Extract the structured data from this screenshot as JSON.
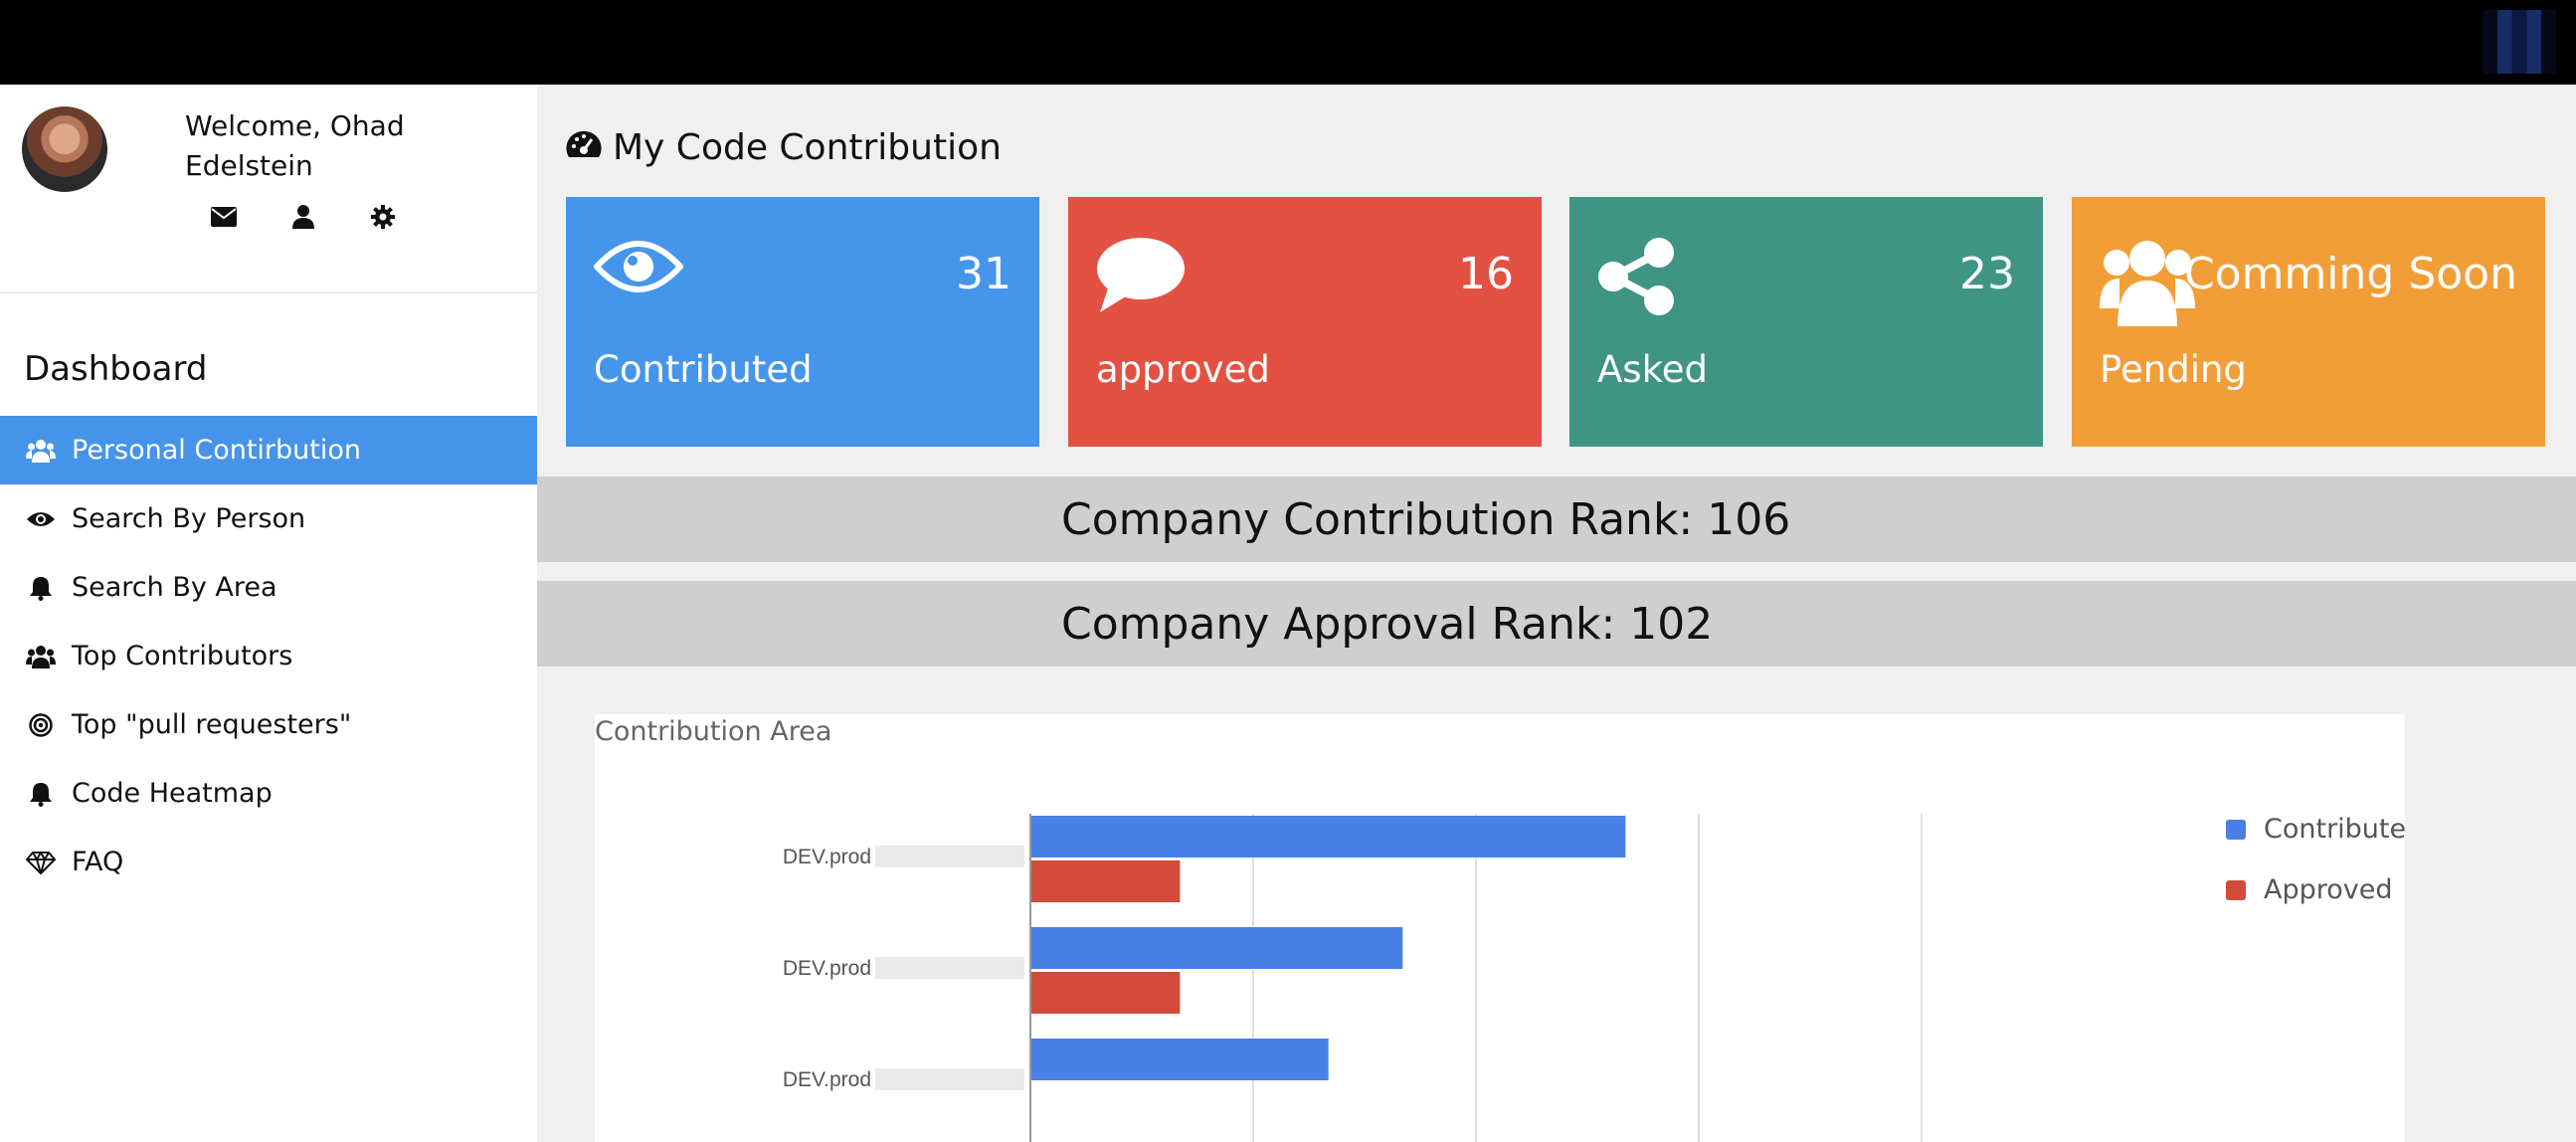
{
  "user": {
    "welcome": "Welcome, Ohad Edelstein"
  },
  "sidebar": {
    "dashboard_title": "Dashboard",
    "items": [
      {
        "label": "Personal Contirbution",
        "icon": "users-icon",
        "active": true
      },
      {
        "label": "Search By Person",
        "icon": "eye-icon"
      },
      {
        "label": "Search By Area",
        "icon": "bell-icon"
      },
      {
        "label": "Top Contributors",
        "icon": "users-icon"
      },
      {
        "label": "Top \"pull requesters\"",
        "icon": "bullseye-icon"
      },
      {
        "label": "Code Heatmap",
        "icon": "bell-icon"
      },
      {
        "label": "FAQ",
        "icon": "diamond-icon"
      }
    ]
  },
  "main": {
    "title": "My Code Contribution",
    "cards": [
      {
        "value": "31",
        "label": "Contributed",
        "icon": "eye-icon",
        "color": "#4596eb"
      },
      {
        "value": "16",
        "label": "approved",
        "icon": "comment-icon",
        "color": "#e25142"
      },
      {
        "value": "23",
        "label": "Asked",
        "icon": "share-icon",
        "color": "#3f9484"
      },
      {
        "value": "Comming Soon",
        "label": "Pending",
        "icon": "users-icon",
        "color": "#f29e38"
      }
    ],
    "ranks": {
      "contribution": "Company Contribution Rank: 106",
      "approval": "Company Approval Rank: 102"
    }
  },
  "chart_data": {
    "type": "bar",
    "orientation": "horizontal",
    "title": "Contribution Area",
    "categories": [
      "DEV.prod",
      "DEV.prod",
      "DEV.prod"
    ],
    "series": [
      {
        "name": "Contributed",
        "color": "#4a7fe4",
        "values": [
          8,
          5,
          4
        ]
      },
      {
        "name": "Approved",
        "color": "#d24a3a",
        "values": [
          2,
          2,
          null
        ]
      }
    ],
    "xlim": [
      0,
      15
    ],
    "grid": true,
    "legend": "right"
  }
}
